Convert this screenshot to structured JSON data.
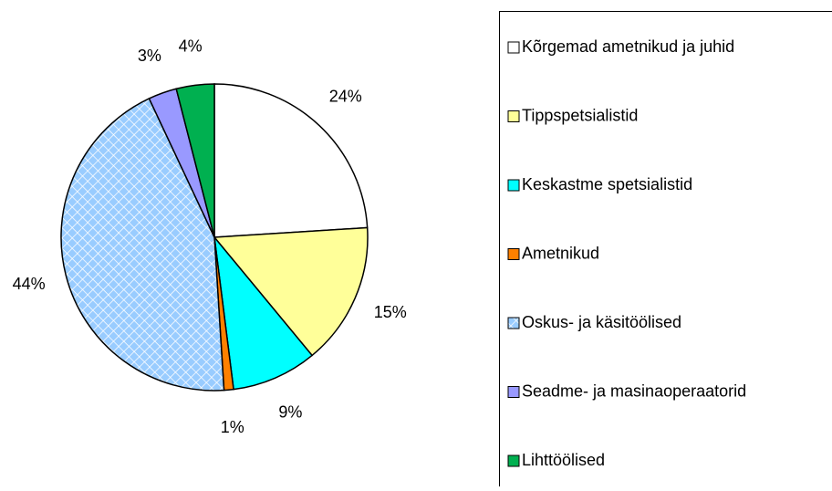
{
  "chart_data": {
    "type": "pie",
    "categories": [
      "Kõrgemad ametnikud ja juhid",
      "Tippspetsialistid",
      "Keskastme spetsialistid",
      "Ametnikud",
      "Oskus- ja käsitöölised",
      "Seadme- ja masinaoperaatorid",
      "Lihttöölised"
    ],
    "values": [
      24,
      15,
      9,
      1,
      44,
      3,
      4
    ],
    "value_labels": [
      "24%",
      "15%",
      "9%",
      "1%",
      "44%",
      "3%",
      "4%"
    ],
    "colors": [
      "#ffffff",
      "#ffff99",
      "#00ffff",
      "#ff8000",
      "#99ccff",
      "#9999ff",
      "#00b050"
    ],
    "patterns": [
      null,
      null,
      null,
      null,
      "crosshatch",
      null,
      null
    ],
    "legend": "right"
  }
}
